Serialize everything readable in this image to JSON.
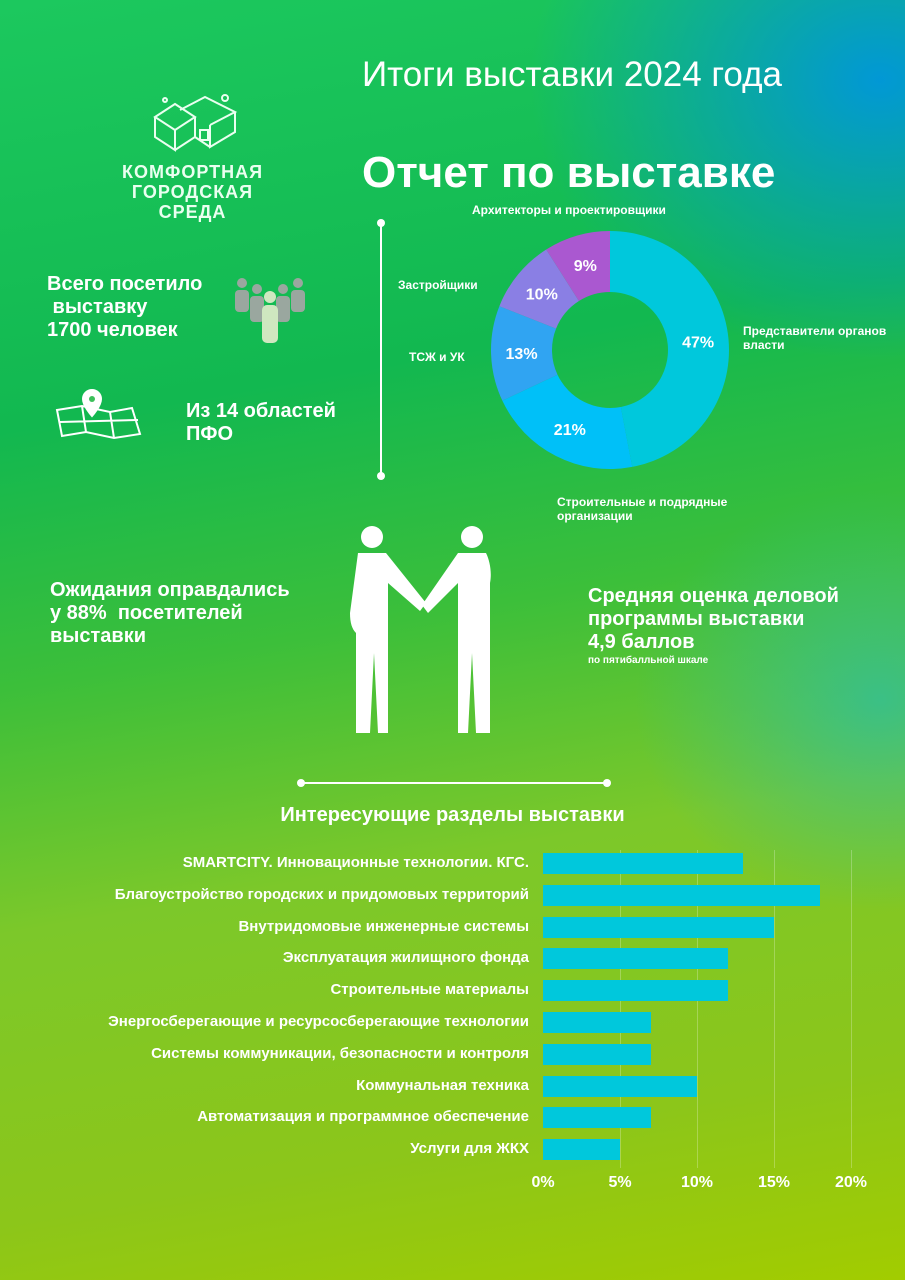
{
  "header": {
    "main_title": "Итоги выставки 2024 года",
    "report_title": "Отчет по выставке"
  },
  "logo": {
    "line1": "КОМФОРТНАЯ",
    "line2": "ГОРОДСКАЯ СРЕДА"
  },
  "stats": {
    "visitors": [
      "Всего посетило",
      " выставку",
      "1700 человек"
    ],
    "regions": [
      "Из 14 областей",
      "ПФО"
    ],
    "expectations": [
      "Ожидания оправдались",
      "у 88%  посетителей",
      "выставки"
    ],
    "rating": [
      "Средняя оценка деловой",
      "программы выставки",
      "4,9 баллов"
    ],
    "rating_note": "по пятибалльной шкале"
  },
  "chart_data": [
    {
      "type": "pie",
      "donut": true,
      "labels": [
        "Представители органов власти",
        "Строительные и подрядные организации",
        "ТСЖ и УК",
        "Застройщики",
        "Архитекторы и проектировщики"
      ],
      "values": [
        47,
        21,
        13,
        10,
        9
      ],
      "value_labels": [
        "47%",
        "21%",
        "13%",
        "10%",
        "9%"
      ],
      "colors": [
        "#00c8dc",
        "#00c0f8",
        "#30a4f2",
        "#8a7fe4",
        "#aa58d0"
      ]
    },
    {
      "type": "bar",
      "orientation": "horizontal",
      "title": "Интересующие разделы выставки",
      "categories": [
        "SMARTCITY. Инновационные технологии. КГС.",
        "Благоустройство городских и придомовых территорий",
        "Внутридомовые инженерные системы",
        "Эксплуатация жилищного фонда",
        "Строительные  материалы",
        "Энергосберегающие  и ресурсосберегающие технологии",
        "Системы коммуникации, безопасности и контроля",
        "Коммунальная техника",
        "Автоматизация и программное обеспечение",
        "Услуги для ЖКХ"
      ],
      "values": [
        13,
        18,
        15,
        12,
        12,
        7,
        7,
        10,
        7,
        5
      ],
      "xlim": [
        0,
        20
      ],
      "ticks": [
        "0%",
        "5%",
        "10%",
        "15%",
        "20%"
      ],
      "grid": true,
      "bar_color": "#00c8dc"
    }
  ]
}
